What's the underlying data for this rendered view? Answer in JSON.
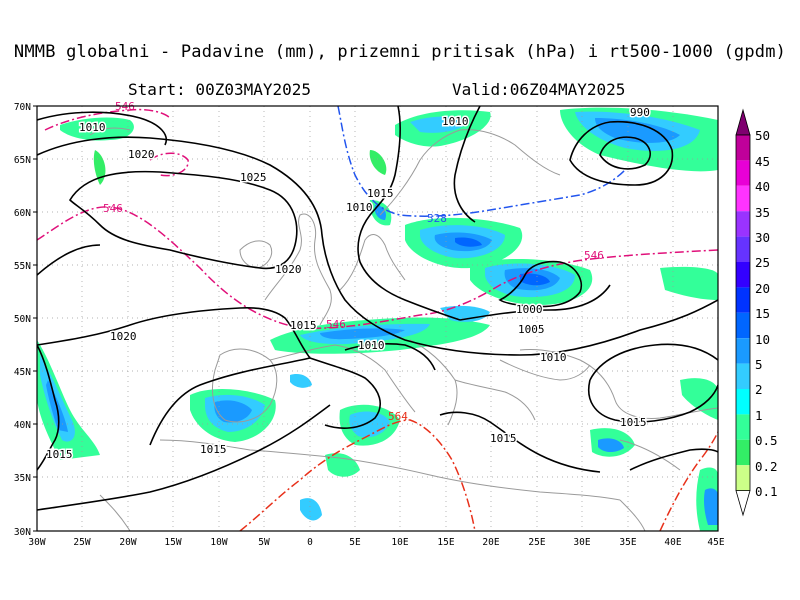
{
  "title": "NMMB globalni - Padavine (mm), prizemni pritisak (hPa) i rt500-1000 (gpdm)",
  "start_label": "Start: 00Z03MAY2025",
  "valid_label": "Valid:06Z04MAY2025",
  "lat_labels": [
    "70N",
    "65N",
    "60N",
    "55N",
    "50N",
    "45N",
    "40N",
    "35N",
    "30N"
  ],
  "lon_labels": [
    "30W",
    "25W",
    "20W",
    "15W",
    "10W",
    "5W",
    "0",
    "5E",
    "10E",
    "15E",
    "20E",
    "25E",
    "30E",
    "35E",
    "40E",
    "45E"
  ],
  "legend": {
    "levels": [
      "50",
      "45",
      "40",
      "35",
      "30",
      "25",
      "20",
      "15",
      "10",
      "5",
      "2",
      "1",
      "0.5",
      "0.2",
      "0.1"
    ],
    "colors": [
      "#7f006f",
      "#c0009a",
      "#e800d6",
      "#ff33ff",
      "#9a33ff",
      "#6633ff",
      "#3300ff",
      "#0033ff",
      "#0066ff",
      "#1a9aff",
      "#33ccff",
      "#00ffff",
      "#33ff99",
      "#33ee66",
      "#ccff88"
    ]
  },
  "isobars": [
    "1010",
    "1020",
    "1025",
    "1020",
    "1020",
    "1015",
    "1010",
    "1015",
    "1010",
    "1010",
    "1005",
    "1000",
    "990",
    "1010",
    "1015",
    "1015",
    "1015"
  ],
  "thickness_labels": [
    "546",
    "546",
    "528",
    "546",
    "546",
    "564"
  ],
  "colors": {
    "isobar": "#000000",
    "thickness_546": "#e0107a",
    "thickness_528": "#2255ee",
    "thickness_564": "#e8301a",
    "coastline": "#9a9a9a",
    "grid": "#9a9a9a"
  }
}
